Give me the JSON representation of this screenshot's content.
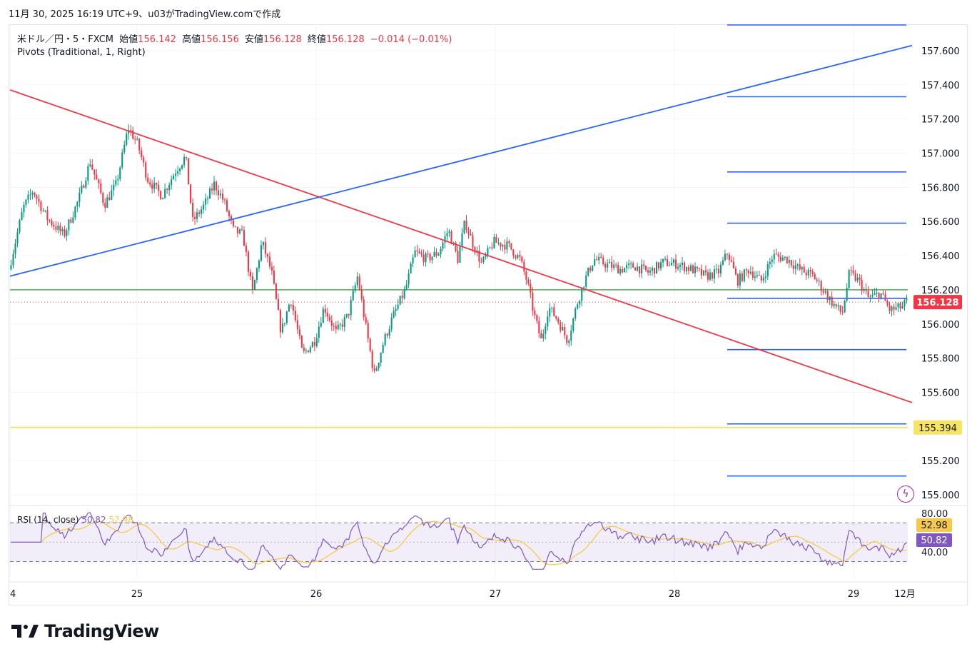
{
  "header": {
    "text": "11月 30, 2025 16:19 UTC+9、u03がTradingView.comで作成"
  },
  "legend": {
    "symbol": "米ドル／円・5・FXCM",
    "open_label": "始値",
    "open": "156.142",
    "high_label": "高値",
    "high": "156.156",
    "low_label": "安値",
    "low": "156.128",
    "close_label": "終値",
    "close": "156.128",
    "change": "−0.014 (−0.01%)",
    "indicator": "Pivots (Traditional, 1, Right)"
  },
  "rsi_legend": {
    "label": "RSI (14, close)",
    "value1": "50.82",
    "value2": "52.98"
  },
  "footer": {
    "brand": "TradingView"
  },
  "colors": {
    "up": "#089981",
    "down": "#f23645",
    "trend_red": "#f23645",
    "trend_blue": "#2962ff",
    "pivot_blue": "#2962ff",
    "green_line": "#4caf50",
    "yellow_line": "#f7e463",
    "rsi": "#7e57c2",
    "rsi_ma": "#f7c948",
    "price_label": "#f23645"
  },
  "chart_data": [
    {
      "type": "candlestick",
      "title": "米ドル／円・5・FXCM",
      "x_ticks": [
        "4",
        "25",
        "26",
        "27",
        "28",
        "29",
        "12月"
      ],
      "y_ticks": [
        "157.600",
        "157.400",
        "157.200",
        "157.000",
        "156.800",
        "156.600",
        "156.400",
        "156.200",
        "156.000",
        "155.800",
        "155.600",
        "155.200",
        "155.000"
      ],
      "ylim": [
        154.95,
        157.75
      ],
      "last_price": "156.128",
      "yellow_level": "155.394",
      "green_level": 156.2,
      "pivot_levels": [
        157.75,
        157.33,
        156.89,
        156.59,
        156.15,
        155.85,
        155.415,
        155.11
      ],
      "price_path": [
        [
          0,
          156.32
        ],
        [
          0.6,
          156.68
        ],
        [
          1.0,
          156.78
        ],
        [
          1.6,
          156.62
        ],
        [
          2.3,
          156.52
        ],
        [
          2.9,
          156.72
        ],
        [
          3.4,
          156.95
        ],
        [
          4.0,
          156.7
        ],
        [
          4.5,
          156.82
        ],
        [
          5.0,
          157.15
        ],
        [
          5.4,
          157.05
        ],
        [
          5.8,
          156.85
        ],
        [
          6.4,
          156.75
        ],
        [
          7.0,
          156.9
        ],
        [
          7.4,
          156.98
        ],
        [
          7.7,
          156.6
        ],
        [
          8.2,
          156.7
        ],
        [
          8.6,
          156.82
        ],
        [
          9.0,
          156.72
        ],
        [
          9.4,
          156.55
        ],
        [
          9.8,
          156.52
        ],
        [
          10.2,
          156.18
        ],
        [
          10.6,
          156.48
        ],
        [
          11.0,
          156.3
        ],
        [
          11.4,
          155.95
        ],
        [
          11.8,
          156.15
        ],
        [
          12.3,
          155.82
        ],
        [
          12.8,
          155.9
        ],
        [
          13.2,
          156.1
        ],
        [
          13.7,
          155.95
        ],
        [
          14.2,
          156.05
        ],
        [
          14.6,
          156.28
        ],
        [
          14.9,
          156.02
        ],
        [
          15.3,
          155.7
        ],
        [
          15.7,
          155.9
        ],
        [
          16.1,
          156.05
        ],
        [
          16.6,
          156.2
        ],
        [
          17.0,
          156.42
        ],
        [
          17.5,
          156.38
        ],
        [
          18.0,
          156.42
        ],
        [
          18.4,
          156.55
        ],
        [
          18.8,
          156.38
        ],
        [
          19.1,
          156.6
        ],
        [
          19.4,
          156.48
        ],
        [
          19.8,
          156.35
        ],
        [
          20.3,
          156.48
        ],
        [
          20.9,
          156.46
        ],
        [
          21.4,
          156.38
        ],
        [
          21.7,
          156.25
        ],
        [
          22.0,
          156.05
        ],
        [
          22.3,
          155.9
        ],
        [
          22.6,
          156.1
        ],
        [
          23.0,
          156.02
        ],
        [
          23.4,
          155.9
        ],
        [
          23.8,
          156.12
        ],
        [
          24.1,
          156.25
        ],
        [
          24.5,
          156.38
        ],
        [
          25.0,
          156.35
        ],
        [
          25.6,
          156.32
        ],
        [
          26.2,
          156.34
        ],
        [
          26.8,
          156.3
        ],
        [
          27.4,
          156.36
        ],
        [
          28.0,
          156.35
        ],
        [
          28.6,
          156.32
        ],
        [
          29.2,
          156.28
        ],
        [
          29.7,
          156.3
        ],
        [
          30.1,
          156.42
        ],
        [
          30.5,
          156.25
        ],
        [
          31.0,
          156.32
        ],
        [
          31.5,
          156.25
        ],
        [
          32.0,
          156.4
        ],
        [
          32.6,
          156.38
        ],
        [
          33.1,
          156.32
        ],
        [
          33.7,
          156.28
        ],
        [
          34.1,
          156.2
        ],
        [
          34.5,
          156.12
        ],
        [
          34.9,
          156.06
        ],
        [
          35.2,
          156.3
        ],
        [
          35.6,
          156.25
        ],
        [
          36.0,
          156.15
        ],
        [
          36.5,
          156.18
        ],
        [
          36.9,
          156.08
        ],
        [
          37.4,
          156.1
        ],
        [
          37.6,
          156.13
        ]
      ],
      "trendlines": [
        {
          "color": "red",
          "from": [
            0,
            157.37
          ],
          "to": [
            37.6,
            155.54
          ]
        },
        {
          "color": "blue",
          "from": [
            0,
            156.28
          ],
          "to": [
            37.6,
            157.63
          ]
        }
      ]
    },
    {
      "type": "line",
      "title": "RSI (14, close)",
      "y_ticks": [
        "80.00",
        "40.00"
      ],
      "ylim": [
        20,
        85
      ],
      "bands": [
        70,
        30
      ],
      "last_rsi": "50.82",
      "last_rsi_ma": "52.98"
    }
  ]
}
